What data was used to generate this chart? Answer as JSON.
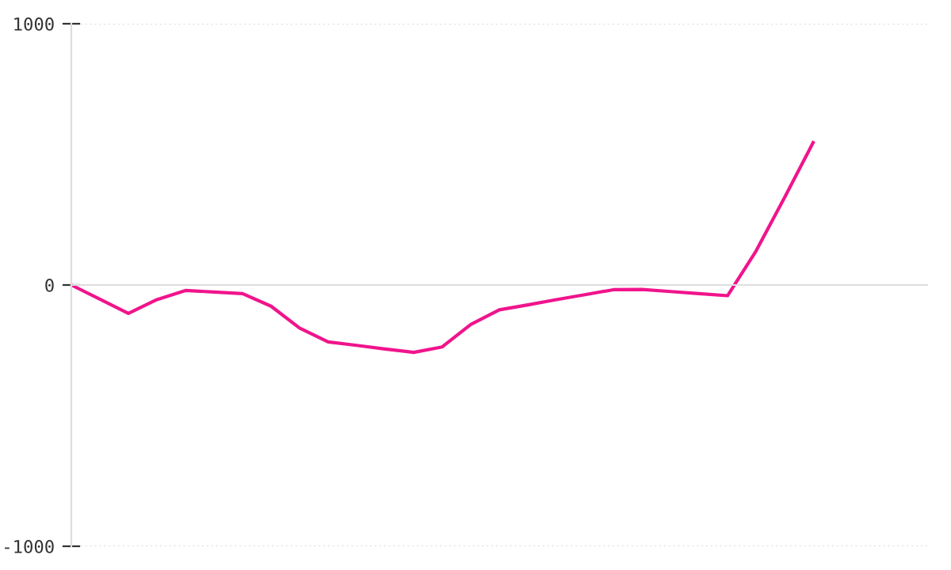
{
  "chart_data": {
    "type": "line",
    "categories": [
      null,
      null,
      null,
      null,
      null,
      null,
      null,
      null,
      null,
      null,
      null,
      null,
      null,
      null,
      null,
      null,
      null,
      null,
      null,
      null,
      null,
      null,
      null,
      null,
      null,
      null,
      null,
      null,
      null,
      null,
      null
    ],
    "series": [
      {
        "color": "#f0148c",
        "values": [
          0,
          -54,
          -109,
          -56,
          -21,
          -27,
          -33,
          -81,
          -165,
          -218,
          -231,
          -245,
          -258,
          -237,
          -151,
          -95,
          -76,
          -56,
          -37,
          -18,
          -17,
          -25,
          -33,
          -41,
          130,
          335,
          545,
          null,
          null,
          null,
          null
        ]
      }
    ],
    "ylim": [
      -1000,
      1000
    ],
    "yticks": [
      -1000,
      0,
      1000
    ],
    "tick_labels": "y",
    "grid": "y",
    "marker": "none",
    "line_style": "solid",
    "legend": false
  }
}
